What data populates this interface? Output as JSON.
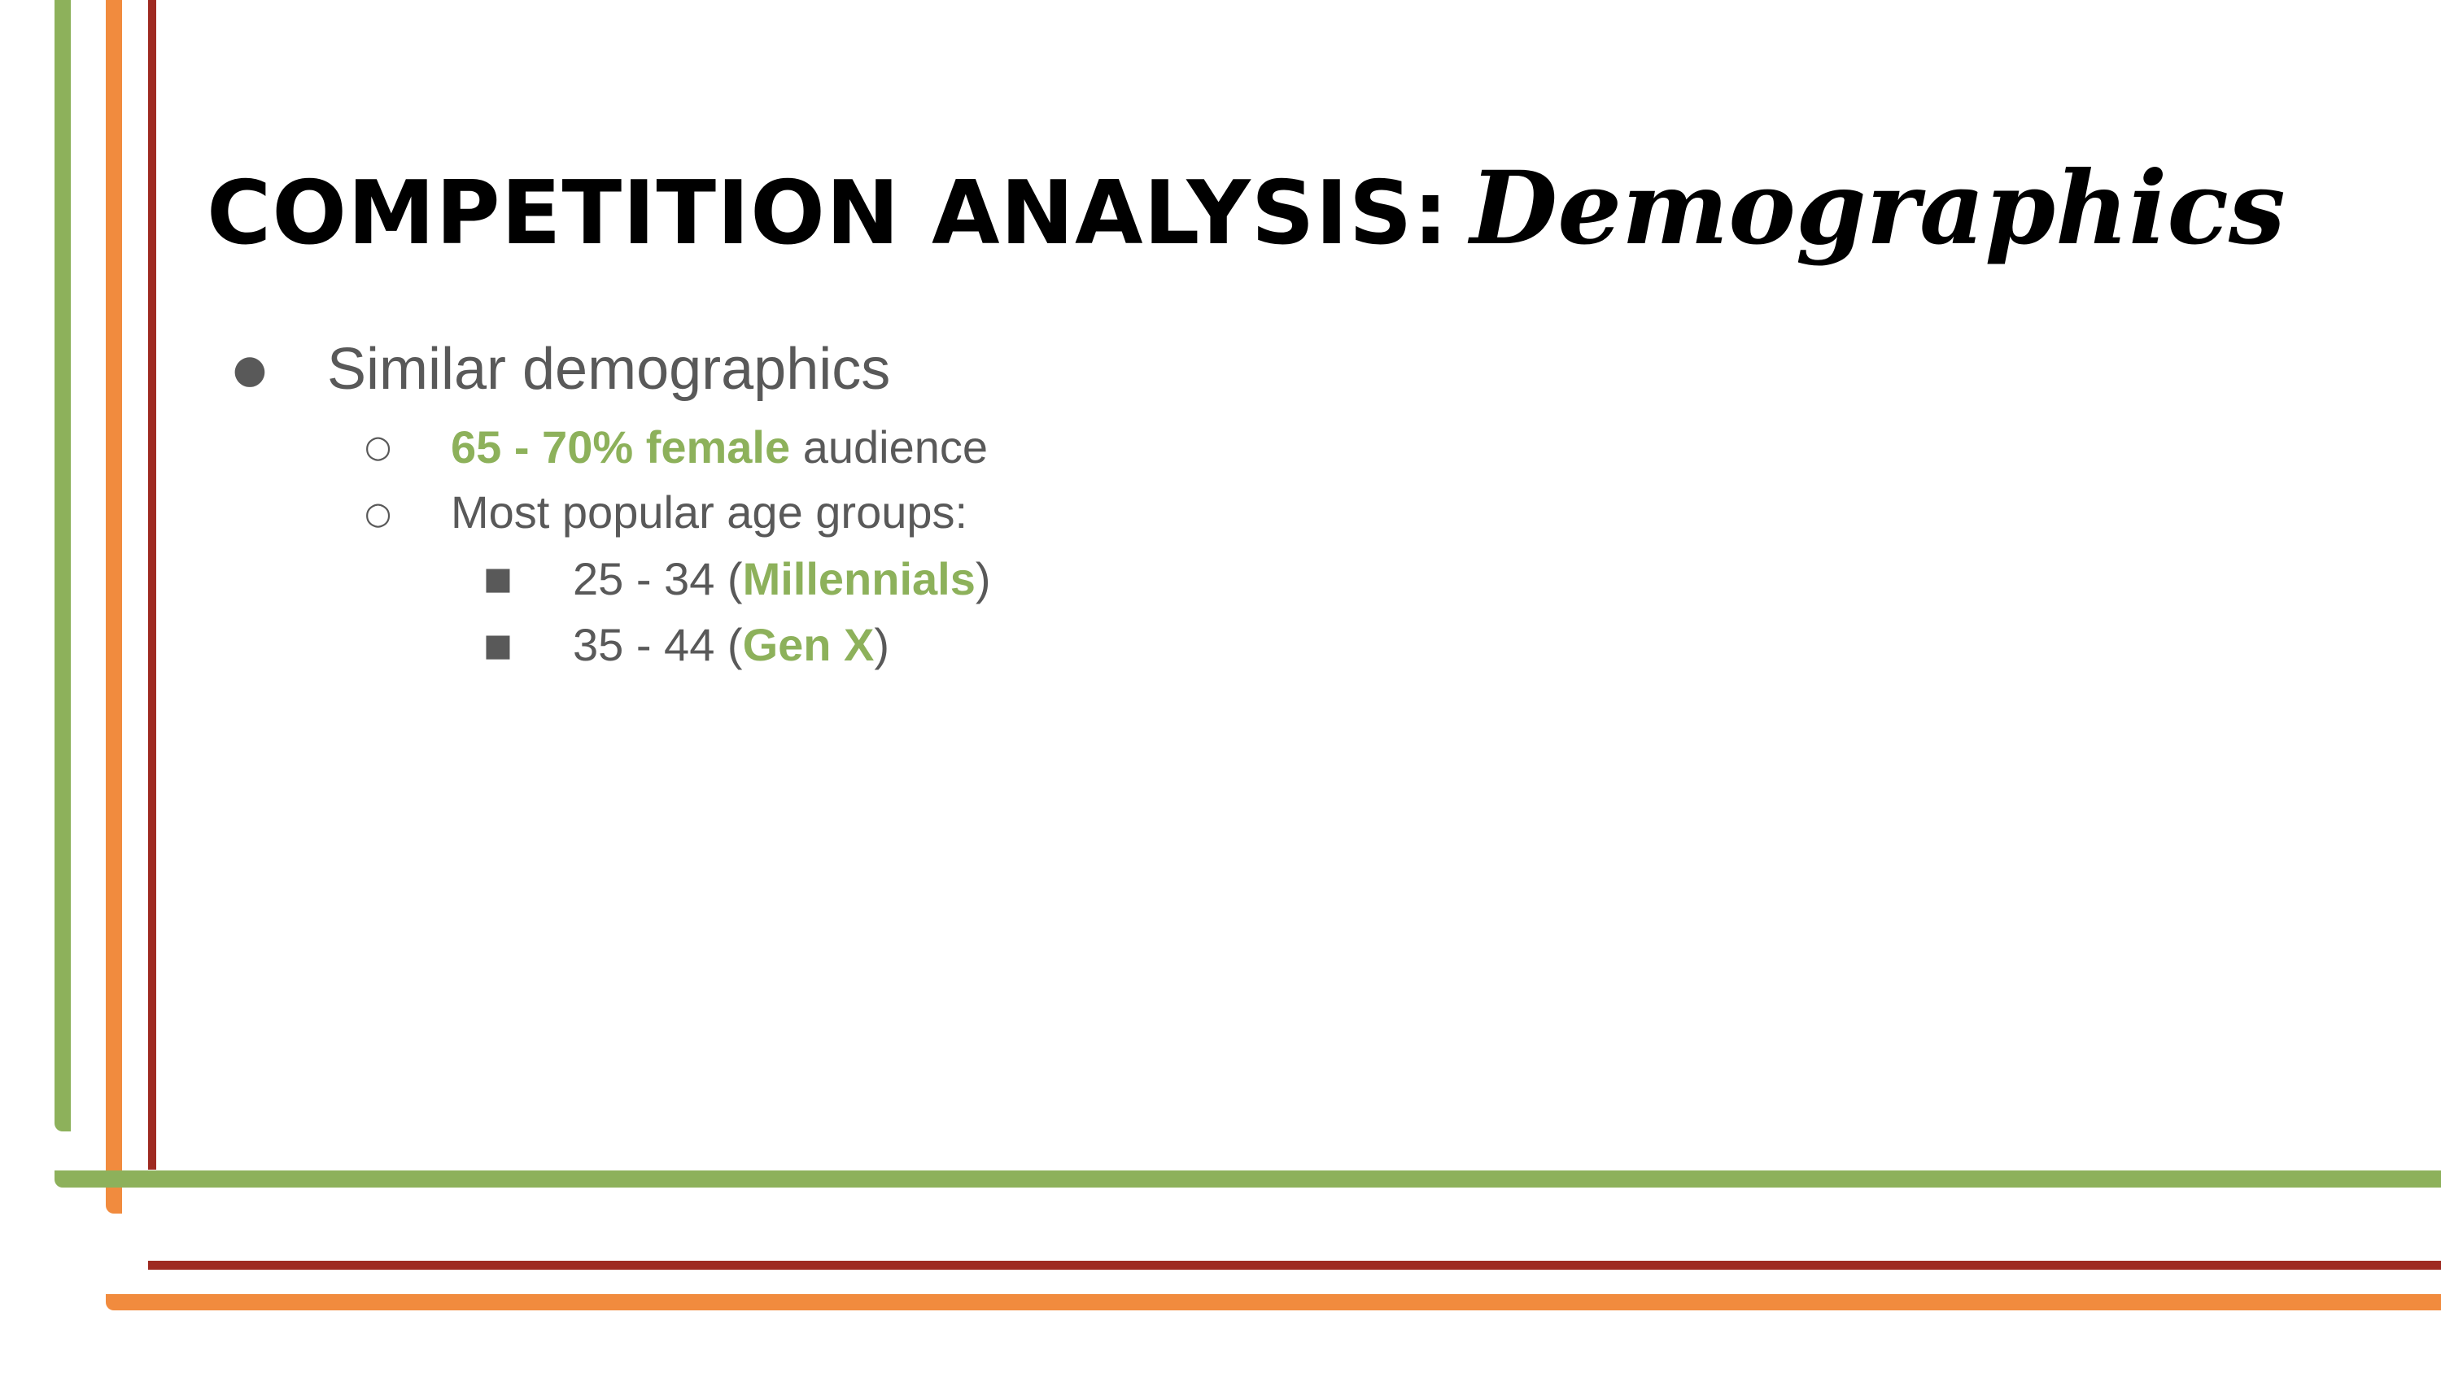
{
  "colors": {
    "green": "#8db15b",
    "orange": "#f18b3e",
    "dark_red": "#9e2a21",
    "text_gray": "#595959",
    "title": "#000000"
  },
  "title": {
    "main": "COMPETITION ANALYSIS:",
    "script": "Demographics"
  },
  "bullets": {
    "level1": {
      "marker": "●",
      "text": "Similar demographics"
    },
    "female": {
      "marker": "○",
      "highlight": "65 - 70% female",
      "rest": " audience"
    },
    "age_groups": {
      "marker": "○",
      "text": "Most popular age groups:"
    },
    "millennials": {
      "marker": "■",
      "prefix": "25 - 34 (",
      "highlight": "Millennials",
      "suffix": ")"
    },
    "genx": {
      "marker": "■",
      "prefix": "35 - 44 (",
      "highlight": "Gen X",
      "suffix": ")"
    }
  }
}
